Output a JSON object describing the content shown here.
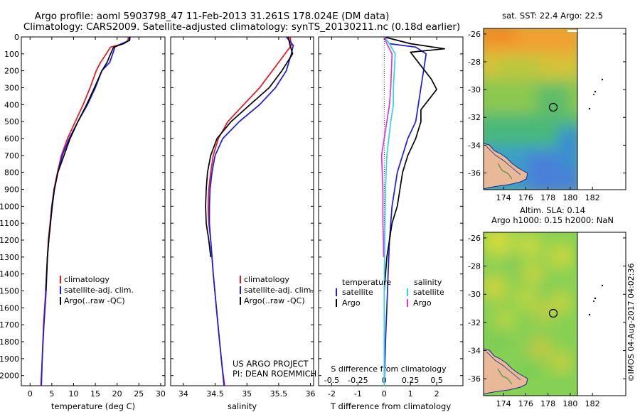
{
  "header": {
    "line1": "Argo profile: aoml 5903798_47 11-Feb-2013 31.261S 178.024E (DM data)",
    "line2": "Climatology: CARS2009. Satellite-adjusted climatology: synTS_20130211.nc (0.18d earlier)"
  },
  "colors": {
    "climatology": "#e8141b",
    "satellite": "#1a1ae6",
    "argo": "#000000",
    "salinity_diff_sat": "#28d8e6",
    "salinity_diff_argo": "#e632e6"
  },
  "credit": {
    "line1": "US ARGO PROJECT",
    "line2": "PI: DEAN ROEMMICH"
  },
  "imos_stamp": "©IMOS 04-Aug-2017 04:02:36",
  "chart_data": [
    {
      "type": "line",
      "id": "temperature",
      "xlabel": "temperature (deg C)",
      "ylabel": "",
      "xlim": [
        -2,
        31
      ],
      "ylim": [
        2060,
        0
      ],
      "xticks": [
        0,
        5,
        10,
        15,
        20,
        25,
        30
      ],
      "yticks": [
        0,
        100,
        200,
        300,
        400,
        500,
        600,
        700,
        800,
        900,
        1000,
        1100,
        1200,
        1300,
        1400,
        1500,
        1600,
        1700,
        1800,
        1900,
        2000
      ],
      "legend": [
        "climatology",
        "satellite-adj. clim.",
        "Argo(..raw -QC)"
      ],
      "series": [
        {
          "name": "climatology",
          "x": [
            22.6,
            22.5,
            21.5,
            18.5,
            17.5,
            16.2,
            15.2,
            13.8,
            12.2,
            10.4,
            8.6,
            7.2,
            6.3,
            5.5,
            5.0,
            4.6,
            4.2,
            4.0,
            3.6,
            3.1,
            2.8,
            2.5
          ],
          "y": [
            0,
            20,
            40,
            60,
            100,
            150,
            200,
            300,
            400,
            500,
            600,
            700,
            800,
            900,
            1000,
            1100,
            1200,
            1300,
            1500,
            1700,
            1900,
            2060
          ]
        },
        {
          "name": "satellite-adj. clim.",
          "x": [
            23.0,
            22.9,
            21.0,
            19.5,
            19.0,
            18.3,
            16.5,
            15.0,
            13.2,
            11.0,
            9.0,
            7.4,
            6.4,
            5.6,
            5.0,
            4.7,
            4.3,
            4.0,
            3.7,
            3.2,
            2.8,
            2.6
          ],
          "y": [
            0,
            20,
            40,
            60,
            100,
            150,
            200,
            300,
            400,
            500,
            600,
            700,
            800,
            900,
            1000,
            1100,
            1200,
            1300,
            1500,
            1700,
            1900,
            2060
          ]
        },
        {
          "name": "Argo(..raw -QC)",
          "x": [
            22.8,
            22.8,
            21.5,
            19.2,
            18.5,
            17.7,
            16.5,
            14.8,
            13.0,
            11.0,
            9.2,
            7.8,
            6.4,
            5.6,
            5.1,
            4.7,
            4.3,
            4.0,
            3.6
          ],
          "y": [
            0,
            20,
            40,
            60,
            100,
            150,
            200,
            300,
            400,
            500,
            600,
            700,
            800,
            900,
            1000,
            1100,
            1200,
            1300,
            1500
          ]
        }
      ]
    },
    {
      "type": "line",
      "id": "salinity",
      "xlabel": "salinity",
      "ylabel": "",
      "xlim": [
        33.8,
        36.05
      ],
      "ylim": [
        2060,
        0
      ],
      "xticks": [
        34,
        34.5,
        35,
        35.5,
        36
      ],
      "xtick_labels": [
        "34",
        "34.5",
        "35",
        "35.5",
        "36"
      ],
      "legend": [
        "climatology",
        "satellite-adj. clim.",
        "Argo(..raw -QC)"
      ],
      "series": [
        {
          "name": "climatology",
          "x": [
            35.68,
            35.7,
            35.6,
            35.4,
            35.2,
            34.95,
            34.7,
            34.55,
            34.47,
            34.43,
            34.4,
            34.39,
            34.4,
            34.43,
            34.47,
            34.52,
            34.57,
            34.61,
            34.65
          ],
          "y": [
            0,
            50,
            100,
            200,
            300,
            400,
            500,
            600,
            700,
            800,
            900,
            1000,
            1100,
            1200,
            1400,
            1600,
            1800,
            1950,
            2060
          ]
        },
        {
          "name": "satellite-adj. clim.",
          "x": [
            35.62,
            35.73,
            35.7,
            35.62,
            35.45,
            35.2,
            34.88,
            34.62,
            34.5,
            34.45,
            34.42,
            34.41,
            34.41,
            34.43,
            34.47,
            34.52,
            34.57,
            34.61,
            34.64
          ],
          "y": [
            0,
            50,
            100,
            200,
            300,
            400,
            500,
            600,
            700,
            800,
            900,
            1000,
            1100,
            1200,
            1400,
            1600,
            1800,
            1950,
            2060
          ]
        },
        {
          "name": "Argo(..raw -QC)",
          "x": [
            35.65,
            35.68,
            35.72,
            35.55,
            35.35,
            35.05,
            34.75,
            34.53,
            34.43,
            34.38,
            34.36,
            34.35,
            34.36,
            34.4,
            34.43
          ],
          "y": [
            0,
            50,
            100,
            200,
            300,
            400,
            500,
            600,
            700,
            800,
            900,
            1000,
            1100,
            1200,
            1300
          ]
        }
      ]
    },
    {
      "type": "line",
      "id": "difference",
      "xlabel": "T difference from climatology",
      "xlabel_top": "S difference from climatology",
      "ylabel": "",
      "xlim": [
        -2.5,
        3.0
      ],
      "ylim": [
        2060,
        0
      ],
      "xticks": [
        -2,
        -1,
        0,
        1,
        2
      ],
      "s_ticks": [
        -0.5,
        -0.25,
        0,
        0.25,
        0.5
      ],
      "s_tick_labels": [
        "-0.5",
        "-0.25",
        "0",
        "0.25",
        "0.5"
      ],
      "legend_headers": [
        "temperature",
        "salinity"
      ],
      "legend": [
        "satellite",
        "Argo",
        "satellite",
        "Argo"
      ],
      "series": [
        {
          "name": "satellite",
          "group": "temperature",
          "x": [
            0.0,
            0.2,
            1.2,
            1.6,
            1.5,
            1.4,
            1.3,
            1.2,
            0.9,
            0.7,
            0.5,
            0.4,
            0.3,
            0.25,
            0.2,
            0.15,
            0.1,
            0.05,
            0.0
          ],
          "y": [
            0,
            40,
            60,
            100,
            200,
            300,
            400,
            500,
            600,
            700,
            800,
            900,
            1000,
            1100,
            1200,
            1400,
            1600,
            1800,
            2060
          ]
        },
        {
          "name": "Argo",
          "group": "temperature",
          "x": [
            0.0,
            1.0,
            2.3,
            1.0,
            1.3,
            1.8,
            2.0,
            1.4,
            1.4,
            1.2,
            0.9,
            0.7,
            0.6,
            0.5,
            0.3,
            0.2,
            0.1,
            0.0
          ],
          "y": [
            0,
            40,
            70,
            90,
            150,
            250,
            310,
            430,
            500,
            600,
            700,
            800,
            900,
            1000,
            1100,
            1200,
            1300,
            1500
          ]
        },
        {
          "name": "satellite",
          "group": "salinity",
          "x": [
            0.0,
            0.2,
            0.42,
            0.35,
            0.35,
            0.25,
            0.1,
            0.05,
            0.02,
            0.0,
            0.0,
            0.0
          ],
          "y": [
            0,
            40,
            100,
            300,
            400,
            500,
            700,
            900,
            1200,
            1500,
            1800,
            2060
          ]
        },
        {
          "name": "Argo",
          "group": "salinity",
          "x": [
            0.0,
            0.1,
            0.3,
            0.25,
            0.2,
            0.0,
            -0.1,
            -0.05,
            -0.05,
            -0.03,
            -0.02
          ],
          "y": [
            0,
            40,
            100,
            300,
            400,
            600,
            700,
            900,
            1100,
            1200,
            1300
          ]
        }
      ]
    },
    {
      "type": "heatmap",
      "id": "sst-map",
      "title": "sat. SST: 22.4  Argo: 22.5",
      "xlim": [
        172.2,
        185.0
      ],
      "ylim": [
        -37.2,
        -25.6
      ],
      "xticks": [
        174,
        176,
        178,
        180,
        182
      ],
      "yticks": [
        -26,
        -28,
        -30,
        -32,
        -34,
        -36
      ],
      "argo_position": {
        "lon": 178.024,
        "lat": -31.261
      }
    },
    {
      "type": "heatmap",
      "id": "sla-map",
      "title": "Altim. SLA: 0.14",
      "subtitle": "Argo h1000: 0.15  h2000: NaN",
      "xlim": [
        172.2,
        185.0
      ],
      "ylim": [
        -37.2,
        -25.6
      ],
      "xticks": [
        174,
        176,
        178,
        180,
        182
      ],
      "yticks": [
        -26,
        -28,
        -30,
        -32,
        -34,
        -36
      ],
      "argo_position": {
        "lon": 178.024,
        "lat": -31.261
      }
    }
  ]
}
